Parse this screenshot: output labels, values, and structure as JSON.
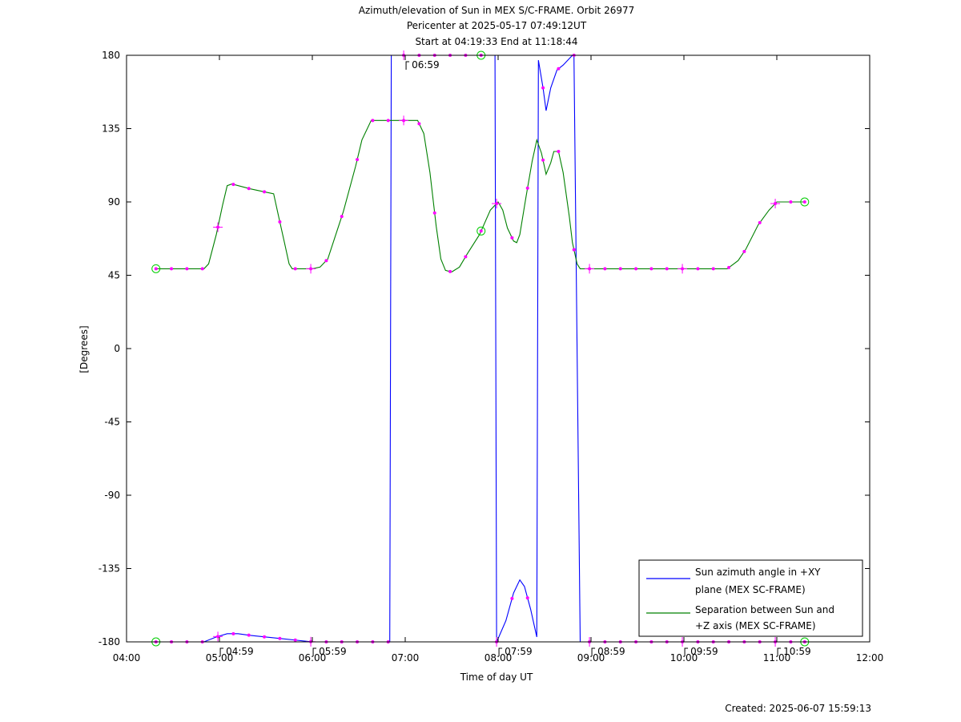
{
  "chart_data": {
    "type": "line",
    "title": "Azimuth/elevation of Sun in MEX S/C-FRAME.  Orbit 26977",
    "subtitle_lines": [
      "Pericenter at 2025-05-17 07:49:12UT",
      "Start at 04:19:33 End at 11:18:44"
    ],
    "xlabel": "Time of day UT",
    "ylabel": "[Degrees]",
    "xlim": [
      "04:00",
      "12:00"
    ],
    "ylim": [
      -180,
      180
    ],
    "x_ticks": [
      "04:00",
      "05:00",
      "06:00",
      "07:00",
      "08:00",
      "09:00",
      "10:00",
      "11:00",
      "12:00"
    ],
    "y_ticks": [
      180,
      135,
      90,
      45,
      0,
      -45,
      -90,
      -135,
      -180
    ],
    "grid": false,
    "legend_position": "bottom-right",
    "colors": {
      "azimuth": "#0000ff",
      "separation": "#008000",
      "marker": "#ff00ff",
      "endpoint": "#00cc00"
    },
    "series": [
      {
        "name": "Sun azimuth angle in +XY plane (MEX SC-FRAME)",
        "legend_lines": [
          "Sun azimuth angle in +XY",
          "plane (MEX SC-FRAME)"
        ],
        "points": [
          [
            "04:19",
            -180
          ],
          [
            "04:50",
            -180
          ],
          [
            "04:58",
            -177
          ],
          [
            "05:05",
            -175
          ],
          [
            "05:12",
            -175
          ],
          [
            "05:20",
            -176
          ],
          [
            "05:30",
            -177
          ],
          [
            "05:40",
            -178
          ],
          [
            "05:50",
            -179
          ],
          [
            "06:00",
            -180
          ],
          [
            "06:30",
            -180
          ],
          [
            "06:40",
            -180
          ],
          [
            "06:50",
            -180
          ],
          [
            "06:51",
            180
          ],
          [
            "07:00",
            180
          ],
          [
            "07:30",
            180
          ],
          [
            "07:55",
            180
          ],
          [
            "07:58",
            180
          ],
          [
            "07:59",
            -180
          ],
          [
            "08:00",
            -178
          ],
          [
            "08:05",
            -167
          ],
          [
            "08:10",
            -150
          ],
          [
            "08:14",
            -142
          ],
          [
            "08:17",
            -146
          ],
          [
            "08:21",
            -160
          ],
          [
            "08:25",
            -177
          ],
          [
            "08:26",
            177
          ],
          [
            "08:29",
            160
          ],
          [
            "08:31",
            146
          ],
          [
            "08:34",
            160
          ],
          [
            "08:38",
            171
          ],
          [
            "08:42",
            174
          ],
          [
            "08:47",
            179
          ],
          [
            "08:48",
            180
          ],
          [
            "08:49",
            180
          ],
          [
            "08:53",
            -180
          ],
          [
            "09:00",
            -180
          ],
          [
            "10:00",
            -180
          ],
          [
            "11:00",
            -180
          ],
          [
            "11:18",
            -180
          ]
        ]
      },
      {
        "name": "Separation between Sun and +Z axis (MEX SC-FRAME)",
        "legend_lines": [
          "Separation between Sun and",
          "+Z axis (MEX SC-FRAME)"
        ],
        "points": [
          [
            "04:19",
            49
          ],
          [
            "04:50",
            49
          ],
          [
            "04:53",
            52
          ],
          [
            "04:58",
            70
          ],
          [
            "05:02",
            88
          ],
          [
            "05:05",
            100
          ],
          [
            "05:08",
            101
          ],
          [
            "05:20",
            98
          ],
          [
            "05:30",
            96
          ],
          [
            "05:35",
            95
          ],
          [
            "05:38",
            82
          ],
          [
            "05:42",
            65
          ],
          [
            "05:45",
            52
          ],
          [
            "05:47",
            49
          ],
          [
            "06:00",
            49
          ],
          [
            "06:05",
            50
          ],
          [
            "06:10",
            55
          ],
          [
            "06:20",
            84
          ],
          [
            "06:28",
            112
          ],
          [
            "06:32",
            128
          ],
          [
            "06:38",
            140
          ],
          [
            "06:45",
            140
          ],
          [
            "07:00",
            140
          ],
          [
            "07:08",
            140
          ],
          [
            "07:12",
            132
          ],
          [
            "07:16",
            108
          ],
          [
            "07:20",
            75
          ],
          [
            "07:23",
            55
          ],
          [
            "07:26",
            48
          ],
          [
            "07:30",
            47
          ],
          [
            "07:35",
            50
          ],
          [
            "07:40",
            58
          ],
          [
            "07:48",
            70
          ],
          [
            "07:55",
            85
          ],
          [
            "08:00",
            90
          ],
          [
            "08:03",
            85
          ],
          [
            "08:06",
            74
          ],
          [
            "08:10",
            66
          ],
          [
            "08:12",
            65
          ],
          [
            "08:14",
            70
          ],
          [
            "08:18",
            93
          ],
          [
            "08:22",
            115
          ],
          [
            "08:25",
            128
          ],
          [
            "08:28",
            120
          ],
          [
            "08:31",
            107
          ],
          [
            "08:34",
            114
          ],
          [
            "08:36",
            121
          ],
          [
            "08:39",
            121
          ],
          [
            "08:42",
            108
          ],
          [
            "08:46",
            81
          ],
          [
            "08:48",
            65
          ],
          [
            "08:51",
            52
          ],
          [
            "08:53",
            49
          ],
          [
            "09:00",
            49
          ],
          [
            "10:00",
            49
          ],
          [
            "10:28",
            49
          ],
          [
            "10:35",
            54
          ],
          [
            "10:40",
            61
          ],
          [
            "10:48",
            76
          ],
          [
            "10:55",
            85
          ],
          [
            "11:00",
            90
          ],
          [
            "11:10",
            90
          ],
          [
            "11:18",
            90
          ]
        ]
      }
    ],
    "marker_times": [
      "04:19",
      "04:29",
      "04:39",
      "04:49",
      "04:59",
      "05:09",
      "05:19",
      "05:29",
      "05:39",
      "05:49",
      "05:59",
      "06:09",
      "06:19",
      "06:29",
      "06:39",
      "06:49",
      "06:59",
      "07:09",
      "07:19",
      "07:29",
      "07:39",
      "07:49",
      "07:59",
      "08:09",
      "08:19",
      "08:29",
      "08:39",
      "08:49",
      "08:59",
      "09:09",
      "09:19",
      "09:29",
      "09:39",
      "09:49",
      "09:59",
      "10:09",
      "10:19",
      "10:29",
      "10:39",
      "10:49",
      "10:59",
      "11:09",
      "11:18"
    ],
    "hour_mark_times": [
      "04:59",
      "05:59",
      "06:59",
      "07:59",
      "08:59",
      "09:59",
      "10:59"
    ],
    "endpoint_times": [
      "04:19",
      "07:49",
      "11:18"
    ],
    "annotations": [
      {
        "text": "06:59",
        "time": "06:59",
        "value": 180
      },
      {
        "text": "04:59",
        "time": "04:59",
        "value": -180
      },
      {
        "text": "05:59",
        "time": "05:59",
        "value": -180
      },
      {
        "text": "07:59",
        "time": "07:59",
        "value": -180
      },
      {
        "text": "08:59",
        "time": "08:59",
        "value": -180
      },
      {
        "text": "09:59",
        "time": "09:59",
        "value": -180
      },
      {
        "text": "10:59",
        "time": "10:59",
        "value": -180
      }
    ]
  },
  "footer": {
    "created": "Created: 2025-06-07 15:59:13"
  }
}
